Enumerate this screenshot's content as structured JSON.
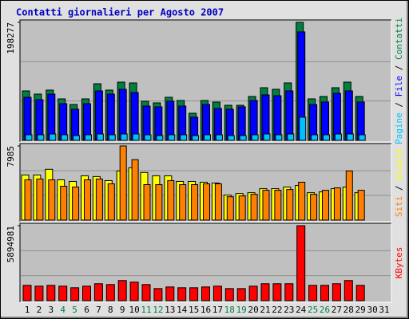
{
  "chart_data": {
    "type": "bar",
    "title": "Contatti giornalieri per Agosto 2007",
    "categories": [
      "1",
      "2",
      "3",
      "4",
      "5",
      "6",
      "7",
      "8",
      "9",
      "10",
      "11",
      "12",
      "13",
      "14",
      "15",
      "16",
      "17",
      "18",
      "19",
      "20",
      "21",
      "22",
      "23",
      "24",
      "25",
      "26",
      "27",
      "28",
      "29",
      "30",
      "31"
    ],
    "category_colors": [
      "#000000",
      "#000000",
      "#000000",
      "#008040",
      "#008040",
      "#000000",
      "#000000",
      "#000000",
      "#000000",
      "#000000",
      "#008040",
      "#008040",
      "#000000",
      "#000000",
      "#000000",
      "#000000",
      "#000000",
      "#008040",
      "#008040",
      "#000000",
      "#000000",
      "#000000",
      "#000000",
      "#000000",
      "#008040",
      "#008040",
      "#000000",
      "#000000",
      "#000000",
      "#000000",
      "#000000"
    ],
    "panels": [
      {
        "ylim": [
          0,
          198277
        ],
        "yticks": [
          198277
        ],
        "series": [
          {
            "name": "Contatti",
            "color": "#008040",
            "values": [
              83080,
              77720,
              84420,
              69680,
              60300,
              69680,
              95140,
              84420,
              97820,
              96480,
              65660,
              62980,
              72360,
              67000,
              45560,
              67000,
              64320,
              58960,
              58960,
              73700,
              88440,
              85760,
              96480,
              198277,
              69680,
              73700,
              88440,
              97820,
              73700,
              null,
              null
            ]
          },
          {
            "name": "File",
            "color": "#0000ff",
            "values": [
              72360,
              68340,
              77720,
              61640,
              52260,
              61640,
              83080,
              77720,
              85760,
              80400,
              57620,
              56280,
              65660,
              57620,
              38860,
              60300,
              53600,
              52260,
              56280,
              67000,
              76380,
              75040,
              83080,
              182240,
              60300,
              64320,
              79060,
              83080,
              64320,
              null,
              null
            ]
          },
          {
            "name": "Pagine",
            "color": "#00c0ff",
            "values": [
              9380,
              9380,
              10720,
              9380,
              8040,
              9380,
              10720,
              9380,
              10720,
              10720,
              9380,
              8040,
              9380,
              9380,
              8040,
              9380,
              9380,
              8040,
              8040,
              9380,
              10720,
              9380,
              10720,
              38860,
              9380,
              9380,
              10720,
              10720,
              9380,
              null,
              null
            ]
          }
        ]
      },
      {
        "ylim": [
          0,
          7985
        ],
        "yticks": [
          7985
        ],
        "series": [
          {
            "name": "Visite",
            "color": "#ffff00",
            "values": [
              4861,
              4861,
              5468,
              4340,
              4166,
              4774,
              4687,
              4253,
              5295,
              5642,
              5121,
              4774,
              4774,
              4166,
              4166,
              4080,
              3993,
              2691,
              2864,
              2951,
              3385,
              3385,
              3559,
              3732,
              2951,
              3038,
              3385,
              3559,
              2951,
              null,
              null
            ]
          },
          {
            "name": "Siti",
            "color": "#ff8000",
            "values": [
              4340,
              4427,
              4340,
              3646,
              3559,
              4340,
              4427,
              3906,
              7985,
              6510,
              3819,
              3819,
              4253,
              3819,
              3819,
              3906,
              3906,
              2517,
              2604,
              2778,
              3212,
              3212,
              3298,
              4080,
              2778,
              3212,
              3472,
              5295,
              3212,
              null,
              null
            ]
          }
        ]
      },
      {
        "ylim": [
          0,
          5894981
        ],
        "yticks": [
          5894981
        ],
        "series": [
          {
            "name": "KBytes",
            "color": "#ff0000",
            "values": [
              1204353,
              1140966,
              1204353,
              1140966,
              1014192,
              1140966,
              1331127,
              1267740,
              1584675,
              1457901,
              1267740,
              950805,
              1077579,
              1014192,
              1014192,
              1077579,
              1140966,
              950805,
              950805,
              1140966,
              1331127,
              1331127,
              1331127,
              5894981,
              1204353,
              1204353,
              1331127,
              1584675,
              1204353,
              null,
              null
            ]
          }
        ]
      }
    ]
  }
}
